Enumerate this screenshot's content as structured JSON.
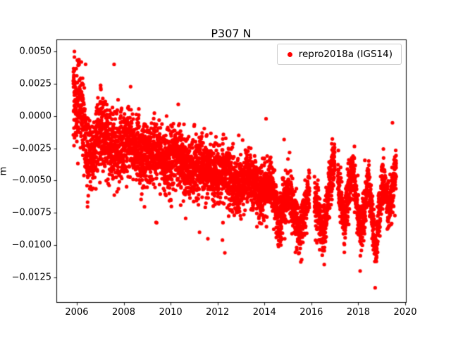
{
  "chart_data": {
    "type": "scatter",
    "title": "P307 N",
    "xlabel": "",
    "ylabel": "m",
    "grid": false,
    "legend": {
      "position": "upper right",
      "entries": [
        {
          "label": "repro2018a (IGS14)",
          "marker_color": "#ff0000"
        }
      ]
    },
    "marker": {
      "color": "#ff0000",
      "radius_px": 2.6
    },
    "xlim": [
      2005.13,
      2020.03
    ],
    "ylim": [
      -0.01441,
      0.00593
    ],
    "xticks": [
      2006,
      2008,
      2010,
      2012,
      2014,
      2016,
      2018,
      2020
    ],
    "xtick_labels": [
      "2006",
      "2008",
      "2010",
      "2012",
      "2014",
      "2016",
      "2018",
      "2020"
    ],
    "yticks": [
      0.005,
      0.0025,
      0.0,
      -0.0025,
      -0.005,
      -0.0075,
      -0.01,
      -0.0125
    ],
    "ytick_labels": [
      "0.0050",
      "0.0025",
      "0.0000",
      "−0.0025",
      "−0.0050",
      "−0.0075",
      "−0.0100",
      "−0.0125"
    ],
    "axis_color": "#000000",
    "series": [
      {
        "name": "repro2018a (IGS14)",
        "t_start": 2005.85,
        "t_end": 2019.62,
        "cadence_days": 1,
        "gaps": [
          [
            2015.92,
            2016.13
          ],
          [
            2017.0,
            2017.12
          ]
        ],
        "trend_t": [
          2005.85,
          2006.0,
          2006.15,
          2006.45,
          2006.75,
          2006.95,
          2007.3,
          2007.8,
          2008.25,
          2008.8,
          2009.3,
          2009.8,
          2010.3,
          2010.8,
          2011.3,
          2011.8,
          2012.3,
          2012.8,
          2013.3,
          2013.8,
          2014.3,
          2014.6,
          2015.0,
          2015.5,
          2016.0,
          2016.5,
          2016.95,
          2017.4,
          2017.75,
          2018.1,
          2018.45,
          2018.75,
          2019.05,
          2019.3,
          2019.62
        ],
        "trend_v": [
          0.0015,
          0.0008,
          0.0012,
          -0.003,
          -0.0028,
          -0.0008,
          -0.0022,
          -0.0026,
          -0.002,
          -0.0031,
          -0.0026,
          -0.0036,
          -0.003,
          -0.0042,
          -0.0036,
          -0.0046,
          -0.0041,
          -0.0056,
          -0.0047,
          -0.0061,
          -0.0051,
          -0.0082,
          -0.0056,
          -0.009,
          -0.005,
          -0.0094,
          -0.0032,
          -0.008,
          -0.0038,
          -0.0092,
          -0.0052,
          -0.0103,
          -0.0048,
          -0.0072,
          -0.004
        ],
        "noise_t": [
          2005.85,
          2008.0,
          2012.0,
          2016.0,
          2019.62
        ],
        "noise_std": [
          0.0016,
          0.0013,
          0.0011,
          0.0009,
          0.0009
        ],
        "outlier_fraction": 0.02,
        "outlier_scale": 2.2,
        "seed": 42,
        "extremes": [
          [
            2005.9,
            0.005
          ],
          [
            2014.6,
            -0.0101
          ],
          [
            2015.55,
            -0.0113
          ],
          [
            2016.55,
            -0.0115
          ],
          [
            2018.08,
            -0.012
          ],
          [
            2018.72,
            -0.0133
          ]
        ]
      }
    ]
  }
}
